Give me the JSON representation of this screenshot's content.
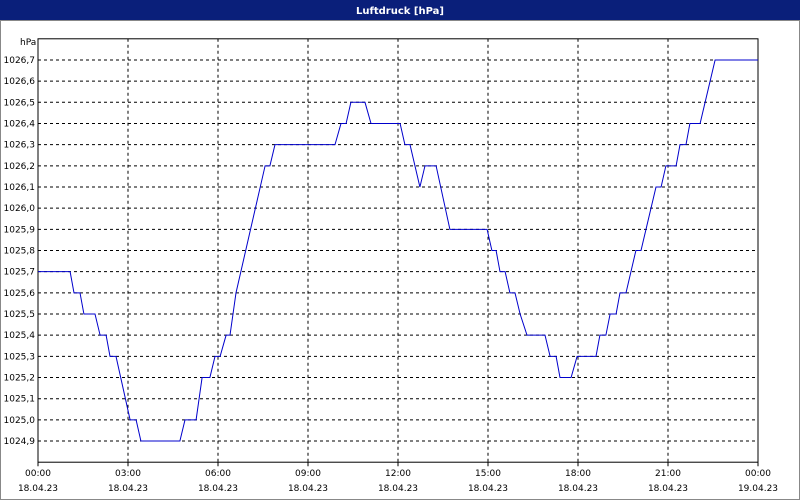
{
  "chart_data": {
    "type": "line",
    "title": "Luftdruck [hPa]",
    "y_unit": "hPa",
    "x": [
      0,
      1.07,
      1.2,
      1.4,
      1.53,
      1.9,
      2.07,
      2.27,
      2.4,
      2.6,
      3.07,
      3.27,
      3.43,
      4.73,
      4.9,
      5.27,
      5.47,
      5.73,
      5.9,
      6.07,
      6.27,
      6.4,
      6.6,
      7.57,
      7.73,
      7.9,
      9.9,
      10.1,
      10.27,
      10.43,
      10.9,
      11.1,
      12.07,
      12.23,
      12.4,
      12.73,
      12.9,
      13.27,
      13.73,
      14.97,
      15.13,
      15.27,
      15.4,
      15.57,
      15.73,
      15.9,
      16.07,
      16.3,
      16.9,
      17.07,
      17.27,
      17.4,
      17.77,
      17.97,
      18.6,
      18.73,
      18.93,
      19.07,
      19.27,
      19.4,
      19.6,
      19.93,
      20.1,
      20.6,
      20.77,
      20.93,
      21.27,
      21.4,
      21.6,
      21.73,
      22.07,
      22.57,
      24
    ],
    "series": [
      {
        "name": "Luftdruck",
        "color": "#0000cc",
        "values": [
          1025.7,
          1025.7,
          1025.6,
          1025.6,
          1025.5,
          1025.5,
          1025.4,
          1025.4,
          1025.3,
          1025.3,
          1025.0,
          1025.0,
          1024.9,
          1024.9,
          1025.0,
          1025.0,
          1025.2,
          1025.2,
          1025.3,
          1025.3,
          1025.4,
          1025.4,
          1025.6,
          1026.2,
          1026.2,
          1026.3,
          1026.3,
          1026.4,
          1026.4,
          1026.5,
          1026.5,
          1026.4,
          1026.4,
          1026.3,
          1026.3,
          1026.1,
          1026.2,
          1026.2,
          1025.9,
          1025.9,
          1025.8,
          1025.8,
          1025.7,
          1025.7,
          1025.6,
          1025.6,
          1025.5,
          1025.4,
          1025.4,
          1025.3,
          1025.3,
          1025.2,
          1025.2,
          1025.3,
          1025.3,
          1025.4,
          1025.4,
          1025.5,
          1025.5,
          1025.6,
          1025.6,
          1025.8,
          1025.8,
          1026.1,
          1026.1,
          1026.2,
          1026.2,
          1026.3,
          1026.3,
          1026.4,
          1026.4,
          1026.7,
          1026.7
        ]
      }
    ],
    "xlim": [
      0,
      24
    ],
    "xticks": [
      {
        "value": 0,
        "label": "00:00"
      },
      {
        "value": 3,
        "label": "03:00"
      },
      {
        "value": 6,
        "label": "06:00"
      },
      {
        "value": 9,
        "label": "09:00"
      },
      {
        "value": 12,
        "label": "12:00"
      },
      {
        "value": 15,
        "label": "15:00"
      },
      {
        "value": 18,
        "label": "18:00"
      },
      {
        "value": 21,
        "label": "21:00"
      },
      {
        "value": 24,
        "label": "00:00"
      }
    ],
    "xtick_dates": [
      "18.04.23",
      "18.04.23",
      "18.04.23",
      "18.04.23",
      "18.04.23",
      "18.04.23",
      "18.04.23",
      "18.04.23",
      "19.04.23"
    ],
    "ylim": [
      1024.8,
      1026.8
    ],
    "yticks": [
      {
        "value": 1024.9,
        "label": "1024,9"
      },
      {
        "value": 1025.0,
        "label": "1025,0"
      },
      {
        "value": 1025.1,
        "label": "1025,1"
      },
      {
        "value": 1025.2,
        "label": "1025,2"
      },
      {
        "value": 1025.3,
        "label": "1025,3"
      },
      {
        "value": 1025.4,
        "label": "1025,4"
      },
      {
        "value": 1025.5,
        "label": "1025,5"
      },
      {
        "value": 1025.6,
        "label": "1025,6"
      },
      {
        "value": 1025.7,
        "label": "1025,7"
      },
      {
        "value": 1025.8,
        "label": "1025,8"
      },
      {
        "value": 1025.9,
        "label": "1025,9"
      },
      {
        "value": 1026.0,
        "label": "1026,0"
      },
      {
        "value": 1026.1,
        "label": "1026,1"
      },
      {
        "value": 1026.2,
        "label": "1026,2"
      },
      {
        "value": 1026.3,
        "label": "1026,3"
      },
      {
        "value": 1026.4,
        "label": "1026,4"
      },
      {
        "value": 1026.5,
        "label": "1026,5"
      },
      {
        "value": 1026.6,
        "label": "1026,6"
      },
      {
        "value": 1026.7,
        "label": "1026,7"
      }
    ],
    "grid": true
  }
}
